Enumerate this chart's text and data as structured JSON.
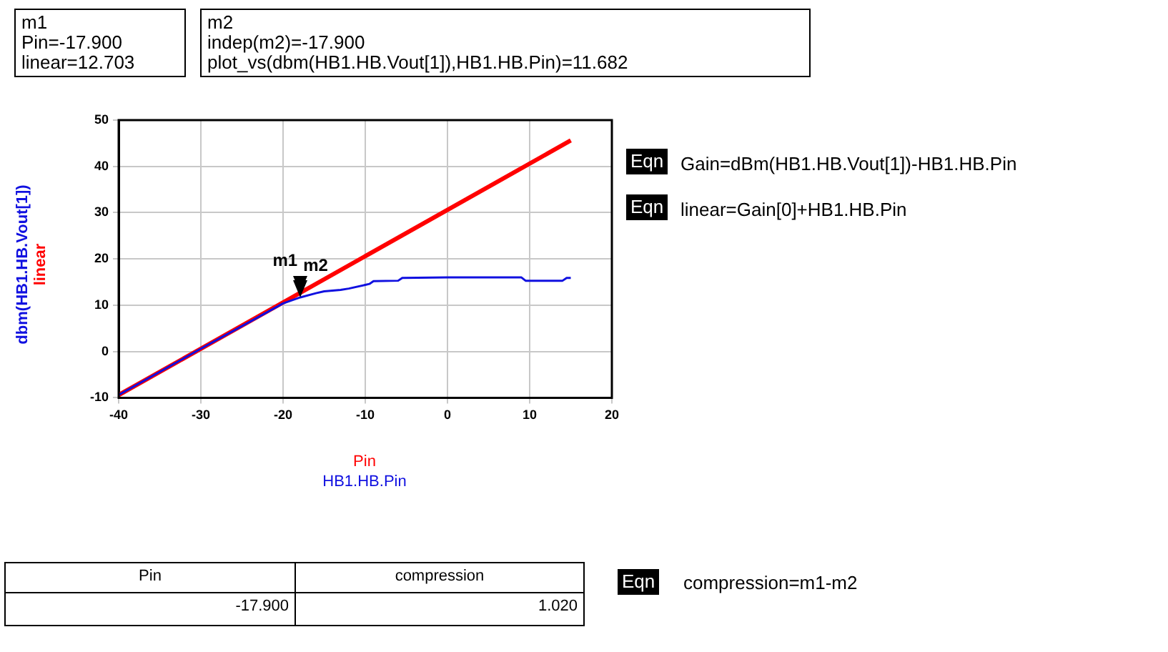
{
  "chart_data": {
    "type": "line",
    "xlabel": "Pin",
    "xlim": [
      -40,
      20
    ],
    "xticks": [
      -40,
      -30,
      -20,
      -10,
      0,
      10,
      20
    ],
    "ylim": [
      -10,
      50
    ],
    "yticks": [
      -10,
      0,
      10,
      20,
      30,
      40,
      50
    ],
    "grid": true,
    "legend": "left",
    "marker": "none",
    "line_style": "solid",
    "series": [
      {
        "name": "dbm(HB1.HB.Vout[1])",
        "color": "#1010e0",
        "x": [
          -40,
          -30,
          -25,
          -20,
          -17.9,
          -16,
          -15,
          -13,
          -12,
          -10,
          -9.5,
          -9,
          -6,
          -5.5,
          0,
          5,
          9,
          9.5,
          11,
          14,
          14.5,
          15
        ],
        "values": [
          -9.4,
          0.6,
          5.5,
          10.4,
          11.7,
          12.6,
          13,
          13.3,
          13.6,
          14.4,
          14.6,
          15.2,
          15.3,
          15.9,
          16,
          16,
          16,
          15.3,
          15.3,
          15.3,
          15.9,
          15.9
        ]
      },
      {
        "name": "linear",
        "color": "#ff0000",
        "x": [
          -40,
          15
        ],
        "values": [
          -9.4,
          45.6
        ]
      }
    ],
    "annotations": [
      "m1\nPin=-17.900\nlinear=12.703",
      "m2\nindep(m2)=-17.900\nplot_vs(dbm(HB1.HB.Vout[1]),HB1.HB.Pin)=11.682",
      "Eqn",
      "Gain=dBm(HB1.HB.Vout[1])-HB1.HB.Pin",
      "Eqn",
      "linear=Gain[0]+HB1.HB.Pin",
      "HB1.HB.Pin",
      "Pin",
      "compression",
      "-17.900",
      "1.020",
      "Eqn",
      "compression=m1-m2",
      {
        "text": "m1",
        "x": -17.9,
        "y": 12.703
      },
      {
        "text": "m2",
        "x": -17.9,
        "y": 11.682
      }
    ]
  }
}
